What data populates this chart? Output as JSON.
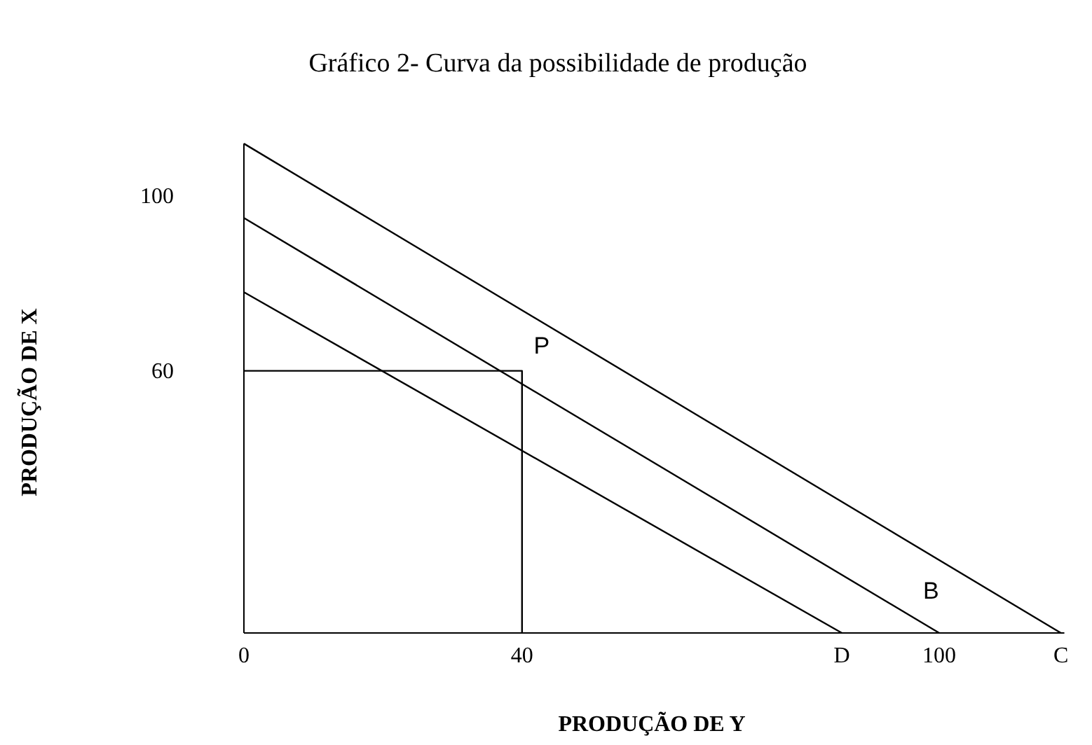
{
  "chart_data": {
    "type": "line",
    "title": "Gráfico 2- Curva da possibilidade de produção",
    "xlabel": "PRODUÇÃO DE Y",
    "ylabel": "PRODUÇÃO DE X",
    "xlim": [
      0,
      118
    ],
    "ylim": [
      0,
      112
    ],
    "xticks": [
      0,
      40,
      {
        "value": 86,
        "label": "D"
      },
      100,
      {
        "value": 117.5,
        "label": "C"
      }
    ],
    "yticks": [
      60,
      100
    ],
    "series": [
      {
        "color": "#000000",
        "x": [
          0,
          86
        ],
        "values": [
          78,
          0
        ]
      },
      {
        "color": "#000000",
        "x": [
          0,
          100
        ],
        "values": [
          95,
          0
        ]
      },
      {
        "color": "#000000",
        "x": [
          0,
          117.5
        ],
        "values": [
          112,
          0
        ]
      },
      {
        "color": "#000000",
        "x": [
          0,
          40,
          40
        ],
        "values": [
          60,
          60,
          0
        ]
      }
    ],
    "annotations": [
      {
        "text": "P",
        "x": 40,
        "y": 60
      },
      {
        "text": "B",
        "x": 96,
        "y": 3.8
      }
    ],
    "grid": false,
    "marker": "none",
    "line_style": "solid"
  }
}
